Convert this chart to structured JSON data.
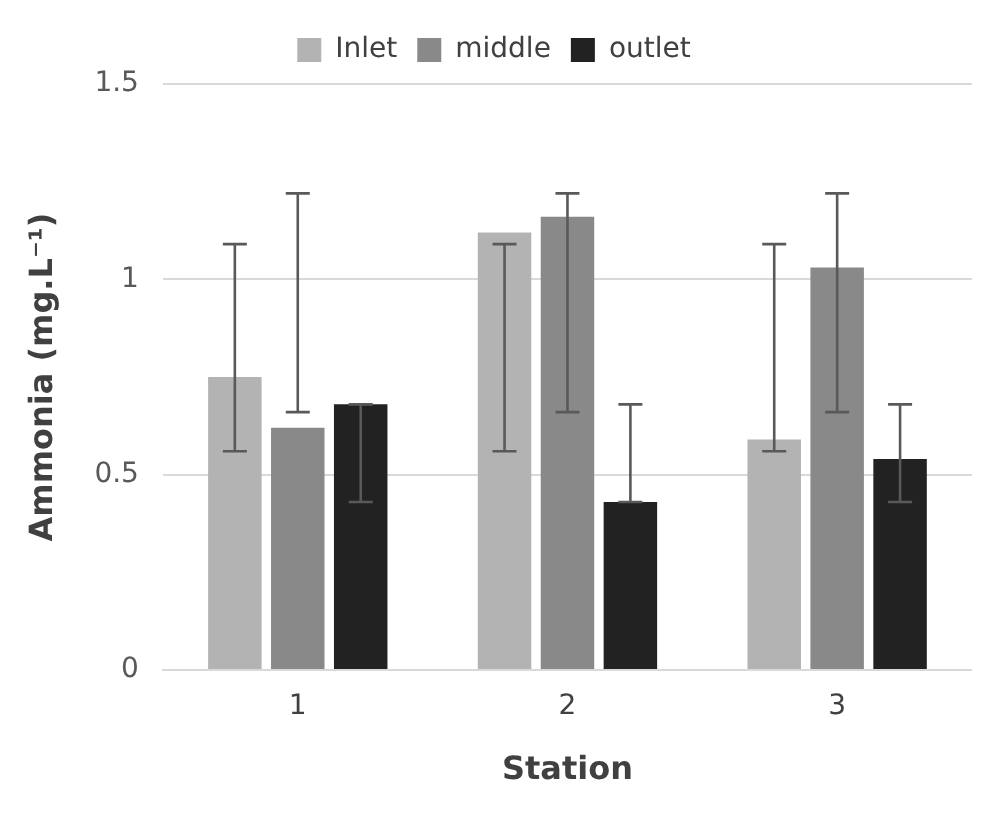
{
  "chart_data": {
    "type": "bar",
    "xlabel": "Station",
    "ylabel": "Ammonia (mg.L⁻¹)",
    "categories": [
      "1",
      "2",
      "3"
    ],
    "series": [
      {
        "name": "Inlet",
        "color": "#b3b3b3",
        "values": [
          0.75,
          1.12,
          0.59
        ],
        "errors": [
          [
            0.56,
            1.09
          ],
          [
            0.56,
            1.09
          ],
          [
            0.56,
            1.09
          ]
        ]
      },
      {
        "name": "middle",
        "color": "#898989",
        "values": [
          0.62,
          1.16,
          1.03
        ],
        "errors": [
          [
            0.66,
            1.22
          ],
          [
            0.66,
            1.22
          ],
          [
            0.66,
            1.22
          ]
        ]
      },
      {
        "name": "outlet",
        "color": "#222222",
        "values": [
          0.68,
          0.43,
          0.54
        ],
        "errors": [
          [
            0.43,
            0.68
          ],
          [
            0.43,
            0.68
          ],
          [
            0.43,
            0.68
          ]
        ]
      }
    ],
    "ylim": [
      0,
      1.5
    ],
    "yticks": [
      0,
      0.5,
      1,
      1.5
    ],
    "grid": "y",
    "legend": "top"
  }
}
